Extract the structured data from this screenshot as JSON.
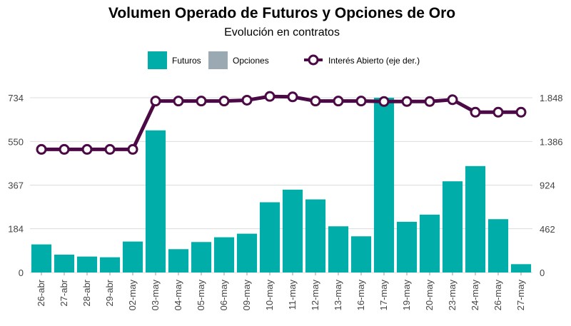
{
  "chart_data": {
    "type": "bar",
    "title": "Volumen Operado de Futuros y Opciones de Oro",
    "subtitle": "Evolución en contratos",
    "categories": [
      "26-abr",
      "27-abr",
      "28-abr",
      "29-abr",
      "02-may",
      "03-may",
      "04-may",
      "05-may",
      "06-may",
      "09-may",
      "10-may",
      "11-may",
      "12-may",
      "13-may",
      "16-may",
      "17-may",
      "19-may",
      "20-may",
      "23-may",
      "24-may",
      "26-may",
      "27-may"
    ],
    "series": [
      {
        "name": "Futuros",
        "kind": "bar",
        "axis": "left",
        "color": "#00ADA8",
        "values": [
          118,
          75,
          67,
          64,
          130,
          597,
          98,
          128,
          148,
          163,
          295,
          348,
          307,
          194,
          152,
          734,
          213,
          243,
          383,
          447,
          224,
          35
        ]
      },
      {
        "name": "Opciones",
        "kind": "bar",
        "axis": "left",
        "color": "#9AA9B2",
        "values": [
          0,
          0,
          0,
          0,
          0,
          0,
          0,
          0,
          0,
          0,
          0,
          0,
          0,
          0,
          0,
          0,
          0,
          0,
          0,
          0,
          0,
          0
        ]
      },
      {
        "name": "Interés Abierto (eje der.)",
        "kind": "line",
        "axis": "right",
        "color": "#4B0A45",
        "values": [
          1302,
          1302,
          1302,
          1302,
          1302,
          1813,
          1813,
          1813,
          1813,
          1822,
          1862,
          1857,
          1813,
          1813,
          1813,
          1808,
          1808,
          1808,
          1827,
          1695,
          1695,
          1695
        ]
      }
    ],
    "y_left": {
      "ticks": [
        "0",
        "184",
        "367",
        "550",
        "734"
      ],
      "tick_values": [
        0,
        184,
        367,
        550,
        734
      ],
      "range": [
        0,
        734
      ]
    },
    "y_right": {
      "ticks": [
        "0",
        "462",
        "924",
        "1.386",
        "1.848"
      ],
      "tick_values": [
        0,
        462,
        924,
        1386,
        1848
      ],
      "range": [
        0,
        1848
      ]
    },
    "legend": {
      "placement": "top-center"
    },
    "grid": true
  }
}
